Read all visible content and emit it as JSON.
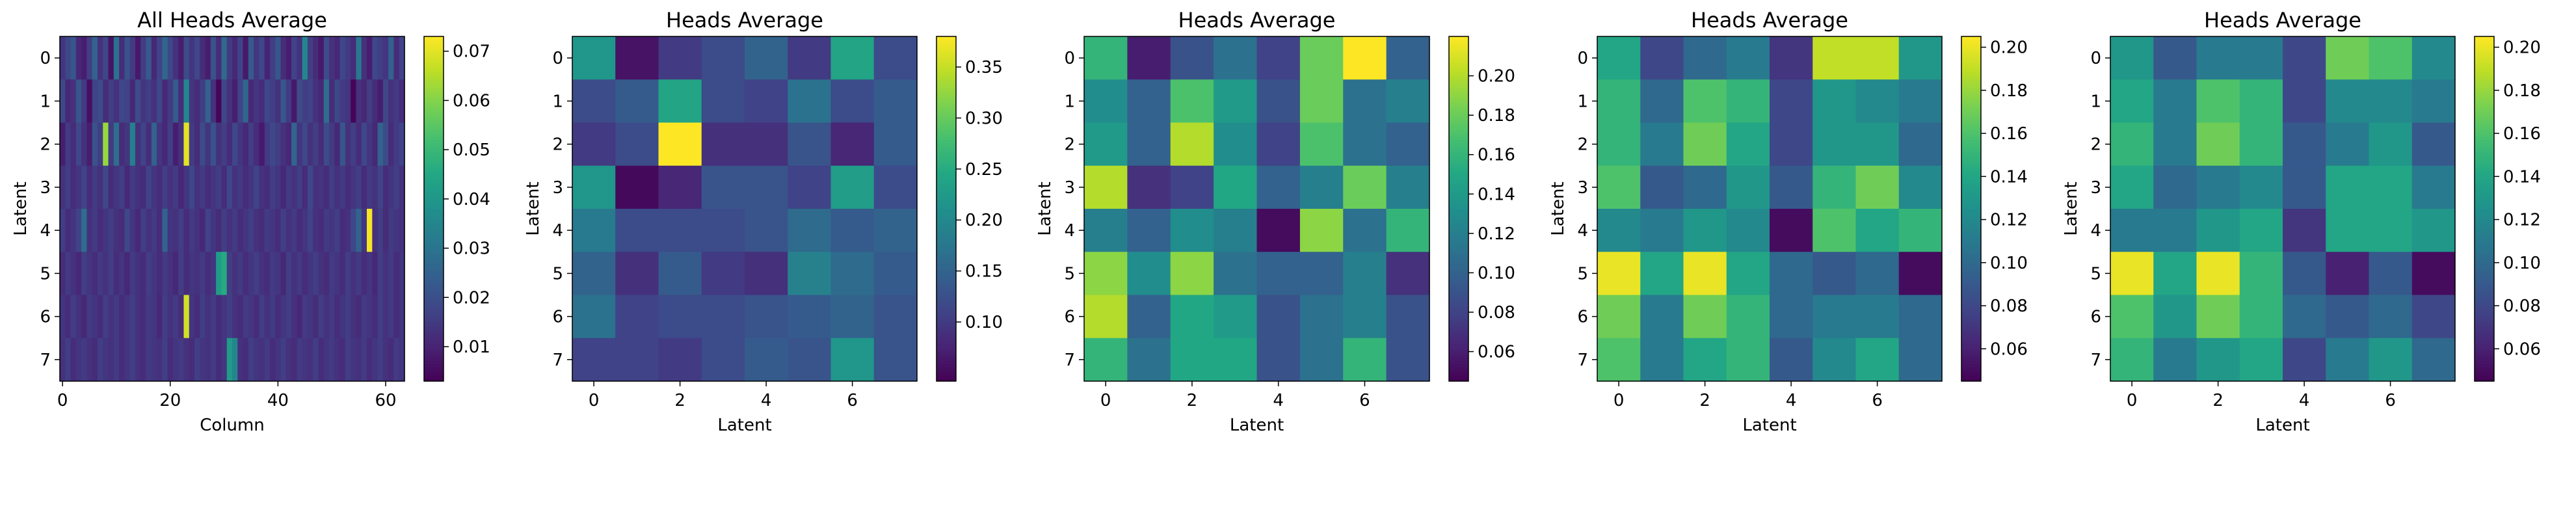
{
  "chart_data": [
    {
      "type": "heatmap",
      "title": "All Heads Average",
      "xlabel": "Column",
      "ylabel": "Latent",
      "x_ticks": [
        "0",
        "20",
        "40",
        "60"
      ],
      "y_ticks": [
        "0",
        "1",
        "2",
        "3",
        "4",
        "5",
        "6",
        "7"
      ],
      "colorbar_ticks": [
        "0.01",
        "0.02",
        "0.03",
        "0.04",
        "0.05",
        "0.06",
        "0.07"
      ],
      "vmin": 0.003,
      "vmax": 0.073,
      "cmap": "viridis",
      "rows": 8,
      "cols": 64,
      "values": [
        [
          0.014,
          0.018,
          0.022,
          0.011,
          0.009,
          0.016,
          0.025,
          0.013,
          0.018,
          0.007,
          0.029,
          0.012,
          0.021,
          0.015,
          0.008,
          0.016,
          0.023,
          0.011,
          0.017,
          0.026,
          0.018,
          0.013,
          0.009,
          0.019,
          0.014,
          0.018,
          0.012,
          0.009,
          0.021,
          0.012,
          0.027,
          0.015,
          0.011,
          0.017,
          0.008,
          0.023,
          0.014,
          0.018,
          0.01,
          0.016,
          0.022,
          0.012,
          0.009,
          0.017,
          0.013,
          0.035,
          0.016,
          0.012,
          0.008,
          0.019,
          0.013,
          0.011,
          0.018,
          0.015,
          0.012,
          0.031,
          0.013,
          0.009,
          0.018,
          0.016,
          0.014,
          0.025,
          0.012,
          0.017
        ],
        [
          0.018,
          0.011,
          0.013,
          0.022,
          0.015,
          0.006,
          0.017,
          0.019,
          0.012,
          0.016,
          0.013,
          0.018,
          0.017,
          0.011,
          0.019,
          0.014,
          0.016,
          0.013,
          0.018,
          0.011,
          0.015,
          0.023,
          0.012,
          0.035,
          0.014,
          0.012,
          0.016,
          0.025,
          0.013,
          0.004,
          0.018,
          0.013,
          0.009,
          0.017,
          0.026,
          0.011,
          0.014,
          0.012,
          0.018,
          0.016,
          0.013,
          0.022,
          0.015,
          0.008,
          0.019,
          0.016,
          0.017,
          0.013,
          0.011,
          0.028,
          0.012,
          0.018,
          0.015,
          0.014,
          0.004,
          0.013,
          0.011,
          0.016,
          0.012,
          0.009,
          0.018,
          0.013,
          0.015,
          0.012
        ],
        [
          0.009,
          0.015,
          0.012,
          0.018,
          0.013,
          0.009,
          0.021,
          0.016,
          0.062,
          0.015,
          0.028,
          0.012,
          0.014,
          0.033,
          0.013,
          0.017,
          0.012,
          0.025,
          0.014,
          0.011,
          0.016,
          0.009,
          0.013,
          0.07,
          0.015,
          0.012,
          0.019,
          0.014,
          0.021,
          0.013,
          0.016,
          0.012,
          0.018,
          0.014,
          0.011,
          0.016,
          0.012,
          0.008,
          0.015,
          0.018,
          0.016,
          0.013,
          0.011,
          0.026,
          0.014,
          0.018,
          0.013,
          0.016,
          0.012,
          0.019,
          0.015,
          0.011,
          0.022,
          0.013,
          0.016,
          0.012,
          0.018,
          0.014,
          0.011,
          0.025,
          0.019,
          0.012,
          0.015,
          0.017
        ],
        [
          0.013,
          0.016,
          0.012,
          0.014,
          0.017,
          0.012,
          0.015,
          0.013,
          0.018,
          0.012,
          0.014,
          0.016,
          0.011,
          0.015,
          0.013,
          0.012,
          0.017,
          0.014,
          0.012,
          0.016,
          0.013,
          0.015,
          0.011,
          0.014,
          0.018,
          0.013,
          0.015,
          0.012,
          0.014,
          0.016,
          0.012,
          0.018,
          0.013,
          0.015,
          0.012,
          0.014,
          0.017,
          0.013,
          0.012,
          0.016,
          0.014,
          0.011,
          0.015,
          0.013,
          0.016,
          0.012,
          0.018,
          0.013,
          0.014,
          0.012,
          0.016,
          0.013,
          0.015,
          0.012,
          0.014,
          0.016,
          0.012,
          0.015,
          0.013,
          0.017,
          0.012,
          0.014,
          0.016,
          0.013
        ],
        [
          0.016,
          0.012,
          0.014,
          0.017,
          0.028,
          0.013,
          0.015,
          0.012,
          0.014,
          0.016,
          0.013,
          0.012,
          0.018,
          0.014,
          0.011,
          0.016,
          0.013,
          0.015,
          0.012,
          0.025,
          0.014,
          0.013,
          0.016,
          0.012,
          0.015,
          0.013,
          0.011,
          0.017,
          0.014,
          0.012,
          0.016,
          0.013,
          0.015,
          0.012,
          0.014,
          0.016,
          0.013,
          0.012,
          0.015,
          0.014,
          0.012,
          0.016,
          0.013,
          0.015,
          0.012,
          0.014,
          0.017,
          0.013,
          0.012,
          0.015,
          0.014,
          0.016,
          0.012,
          0.013,
          0.018,
          0.025,
          0.014,
          0.072,
          0.013,
          0.016,
          0.012,
          0.015,
          0.014,
          0.013
        ],
        [
          0.012,
          0.015,
          0.013,
          0.011,
          0.016,
          0.014,
          0.012,
          0.015,
          0.013,
          0.016,
          0.012,
          0.014,
          0.011,
          0.015,
          0.013,
          0.012,
          0.016,
          0.014,
          0.012,
          0.015,
          0.013,
          0.011,
          0.016,
          0.012,
          0.014,
          0.013,
          0.015,
          0.012,
          0.014,
          0.042,
          0.046,
          0.016,
          0.013,
          0.015,
          0.012,
          0.014,
          0.016,
          0.013,
          0.012,
          0.015,
          0.014,
          0.011,
          0.016,
          0.013,
          0.015,
          0.012,
          0.014,
          0.016,
          0.013,
          0.012,
          0.015,
          0.014,
          0.012,
          0.016,
          0.013,
          0.015,
          0.012,
          0.014,
          0.011,
          0.016,
          0.013,
          0.015,
          0.012,
          0.014
        ],
        [
          0.014,
          0.012,
          0.016,
          0.013,
          0.011,
          0.015,
          0.014,
          0.012,
          0.016,
          0.013,
          0.015,
          0.012,
          0.014,
          0.016,
          0.013,
          0.012,
          0.015,
          0.014,
          0.011,
          0.016,
          0.013,
          0.015,
          0.012,
          0.068,
          0.014,
          0.012,
          0.016,
          0.013,
          0.015,
          0.012,
          0.014,
          0.016,
          0.013,
          0.012,
          0.015,
          0.014,
          0.012,
          0.016,
          0.013,
          0.015,
          0.012,
          0.014,
          0.016,
          0.013,
          0.011,
          0.015,
          0.014,
          0.012,
          0.016,
          0.013,
          0.015,
          0.012,
          0.014,
          0.016,
          0.013,
          0.012,
          0.015,
          0.014,
          0.012,
          0.016,
          0.013,
          0.015,
          0.012,
          0.014
        ],
        [
          0.013,
          0.016,
          0.012,
          0.014,
          0.015,
          0.013,
          0.012,
          0.016,
          0.014,
          0.013,
          0.015,
          0.012,
          0.014,
          0.016,
          0.013,
          0.012,
          0.015,
          0.014,
          0.013,
          0.016,
          0.012,
          0.014,
          0.015,
          0.013,
          0.012,
          0.016,
          0.014,
          0.013,
          0.015,
          0.012,
          0.014,
          0.041,
          0.035,
          0.013,
          0.012,
          0.016,
          0.014,
          0.013,
          0.015,
          0.012,
          0.014,
          0.016,
          0.013,
          0.012,
          0.015,
          0.014,
          0.013,
          0.016,
          0.012,
          0.014,
          0.015,
          0.013,
          0.012,
          0.016,
          0.014,
          0.013,
          0.015,
          0.012,
          0.014,
          0.016,
          0.013,
          0.012,
          0.015,
          0.014
        ]
      ]
    },
    {
      "type": "heatmap",
      "title": "Heads Average",
      "xlabel": "Latent",
      "ylabel": "Latent",
      "x_ticks": [
        "0",
        "2",
        "4",
        "6"
      ],
      "y_ticks": [
        "0",
        "1",
        "2",
        "3",
        "4",
        "5",
        "6",
        "7"
      ],
      "colorbar_ticks": [
        "0.10",
        "0.15",
        "0.20",
        "0.25",
        "0.30",
        "0.35"
      ],
      "vmin": 0.042,
      "vmax": 0.38,
      "cmap": "viridis",
      "rows": 8,
      "cols": 8,
      "values": [
        [
          0.22,
          0.06,
          0.1,
          0.12,
          0.15,
          0.1,
          0.24,
          0.12
        ],
        [
          0.12,
          0.14,
          0.24,
          0.12,
          0.11,
          0.17,
          0.12,
          0.14
        ],
        [
          0.1,
          0.12,
          0.38,
          0.09,
          0.09,
          0.13,
          0.08,
          0.14
        ],
        [
          0.22,
          0.05,
          0.08,
          0.13,
          0.13,
          0.11,
          0.23,
          0.12
        ],
        [
          0.18,
          0.12,
          0.12,
          0.12,
          0.13,
          0.16,
          0.14,
          0.15
        ],
        [
          0.15,
          0.09,
          0.14,
          0.1,
          0.09,
          0.19,
          0.16,
          0.14
        ],
        [
          0.17,
          0.11,
          0.12,
          0.12,
          0.13,
          0.14,
          0.15,
          0.13
        ],
        [
          0.11,
          0.11,
          0.1,
          0.12,
          0.14,
          0.13,
          0.22,
          0.13
        ]
      ]
    },
    {
      "type": "heatmap",
      "title": "Heads Average",
      "xlabel": "Latent",
      "ylabel": "Latent",
      "x_ticks": [
        "0",
        "2",
        "4",
        "6"
      ],
      "y_ticks": [
        "0",
        "1",
        "2",
        "3",
        "4",
        "5",
        "6",
        "7"
      ],
      "colorbar_ticks": [
        "0.06",
        "0.08",
        "0.10",
        "0.12",
        "0.14",
        "0.16",
        "0.18",
        "0.20"
      ],
      "vmin": 0.045,
      "vmax": 0.22,
      "cmap": "viridis",
      "rows": 8,
      "cols": 8,
      "values": [
        [
          0.16,
          0.06,
          0.09,
          0.11,
          0.08,
          0.18,
          0.22,
          0.1
        ],
        [
          0.13,
          0.1,
          0.17,
          0.14,
          0.09,
          0.18,
          0.11,
          0.12
        ],
        [
          0.14,
          0.1,
          0.2,
          0.13,
          0.08,
          0.17,
          0.11,
          0.1
        ],
        [
          0.2,
          0.07,
          0.08,
          0.15,
          0.1,
          0.12,
          0.18,
          0.12
        ],
        [
          0.12,
          0.1,
          0.13,
          0.12,
          0.05,
          0.19,
          0.11,
          0.16
        ],
        [
          0.19,
          0.13,
          0.19,
          0.11,
          0.1,
          0.1,
          0.12,
          0.07
        ],
        [
          0.2,
          0.1,
          0.15,
          0.14,
          0.09,
          0.11,
          0.12,
          0.09
        ],
        [
          0.16,
          0.11,
          0.15,
          0.15,
          0.09,
          0.11,
          0.16,
          0.09
        ]
      ]
    },
    {
      "type": "heatmap",
      "title": "Heads Average",
      "xlabel": "Latent",
      "ylabel": "Latent",
      "x_ticks": [
        "0",
        "2",
        "4",
        "6"
      ],
      "y_ticks": [
        "0",
        "1",
        "2",
        "3",
        "4",
        "5",
        "6",
        "7"
      ],
      "colorbar_ticks": [
        "0.06",
        "0.08",
        "0.10",
        "0.12",
        "0.14",
        "0.16",
        "0.18",
        "0.20"
      ],
      "vmin": 0.045,
      "vmax": 0.205,
      "cmap": "viridis",
      "rows": 8,
      "cols": 8,
      "values": [
        [
          0.14,
          0.08,
          0.1,
          0.11,
          0.07,
          0.19,
          0.19,
          0.13
        ],
        [
          0.15,
          0.1,
          0.16,
          0.15,
          0.08,
          0.13,
          0.12,
          0.11
        ],
        [
          0.15,
          0.11,
          0.17,
          0.14,
          0.08,
          0.13,
          0.13,
          0.1
        ],
        [
          0.16,
          0.09,
          0.1,
          0.13,
          0.09,
          0.15,
          0.17,
          0.12
        ],
        [
          0.12,
          0.11,
          0.13,
          0.12,
          0.05,
          0.16,
          0.14,
          0.15
        ],
        [
          0.2,
          0.14,
          0.2,
          0.14,
          0.1,
          0.09,
          0.1,
          0.05
        ],
        [
          0.17,
          0.11,
          0.17,
          0.15,
          0.1,
          0.11,
          0.11,
          0.1
        ],
        [
          0.16,
          0.11,
          0.14,
          0.15,
          0.09,
          0.12,
          0.14,
          0.1
        ]
      ]
    },
    {
      "type": "heatmap",
      "title": "Heads Average",
      "xlabel": "Latent",
      "ylabel": "Latent",
      "x_ticks": [
        "0",
        "2",
        "4",
        "6"
      ],
      "y_ticks": [
        "0",
        "1",
        "2",
        "3",
        "4",
        "5",
        "6",
        "7"
      ],
      "colorbar_ticks": [
        "0.06",
        "0.08",
        "0.10",
        "0.12",
        "0.14",
        "0.16",
        "0.18",
        "0.20"
      ],
      "vmin": 0.045,
      "vmax": 0.205,
      "cmap": "viridis",
      "rows": 8,
      "cols": 8,
      "values": [
        [
          0.13,
          0.09,
          0.11,
          0.11,
          0.08,
          0.17,
          0.16,
          0.12
        ],
        [
          0.14,
          0.11,
          0.16,
          0.15,
          0.08,
          0.12,
          0.12,
          0.11
        ],
        [
          0.15,
          0.11,
          0.17,
          0.15,
          0.09,
          0.11,
          0.13,
          0.09
        ],
        [
          0.14,
          0.1,
          0.11,
          0.12,
          0.09,
          0.14,
          0.14,
          0.11
        ],
        [
          0.11,
          0.11,
          0.13,
          0.14,
          0.07,
          0.14,
          0.14,
          0.13
        ],
        [
          0.2,
          0.14,
          0.2,
          0.15,
          0.09,
          0.06,
          0.09,
          0.05
        ],
        [
          0.16,
          0.13,
          0.17,
          0.15,
          0.1,
          0.09,
          0.1,
          0.08
        ],
        [
          0.15,
          0.11,
          0.13,
          0.14,
          0.08,
          0.11,
          0.13,
          0.1
        ]
      ]
    }
  ]
}
